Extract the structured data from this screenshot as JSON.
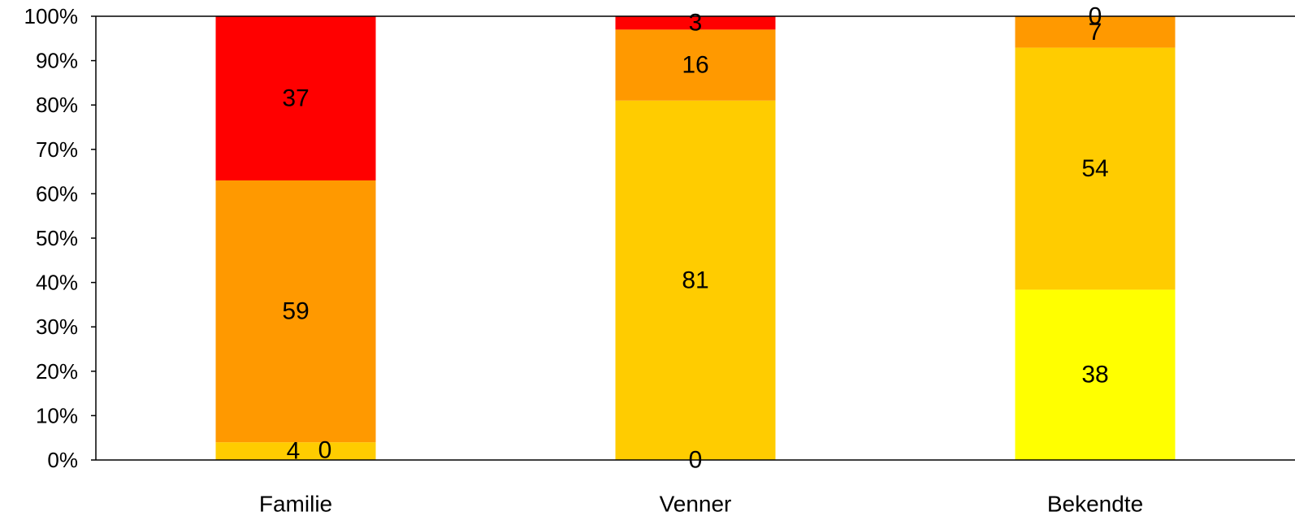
{
  "chart_data": {
    "type": "bar",
    "stacked": "percent",
    "categories": [
      "Familie",
      "Venner",
      "Bekendte"
    ],
    "series": [
      {
        "values": [
          0,
          0,
          38
        ],
        "color": "#FFFF00"
      },
      {
        "values": [
          4,
          81,
          54
        ],
        "color": "#FFCC00"
      },
      {
        "values": [
          59,
          16,
          7
        ],
        "color": "#FF9900"
      },
      {
        "values": [
          37,
          3,
          0
        ],
        "color": "#FF0000"
      }
    ],
    "extra_labels": [
      "0",
      "0",
      ""
    ],
    "yticks": [
      "0%",
      "10%",
      "20%",
      "30%",
      "40%",
      "50%",
      "60%",
      "70%",
      "80%",
      "90%",
      "100%"
    ],
    "ylim": [
      0,
      100
    ],
    "title": "",
    "xlabel": "",
    "ylabel": "",
    "legend": "none",
    "grid": false
  }
}
